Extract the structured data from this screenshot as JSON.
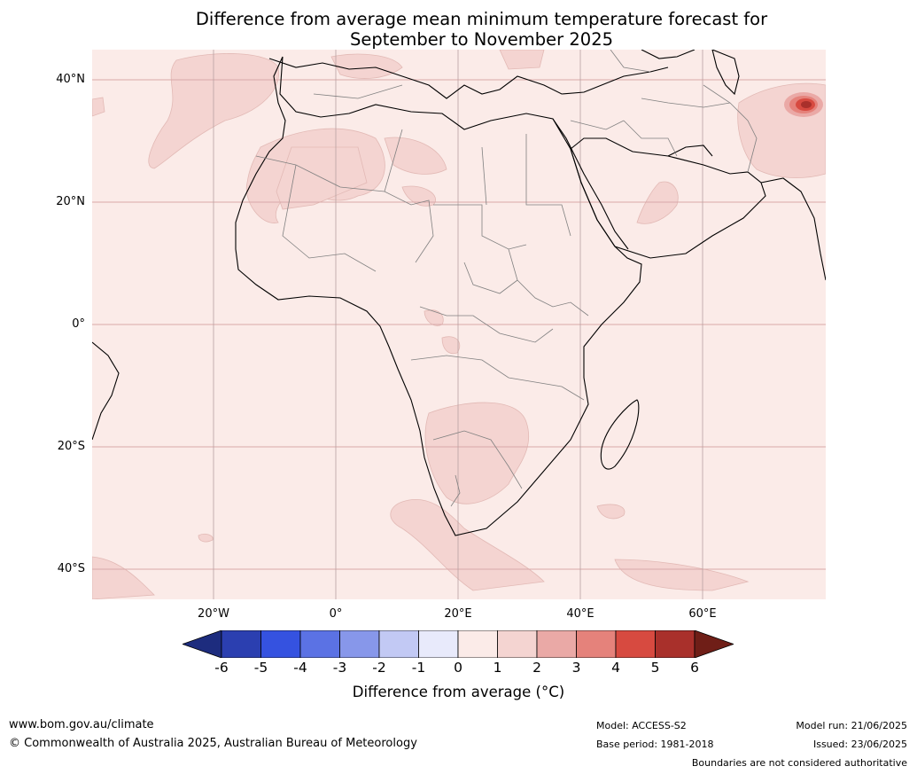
{
  "title": {
    "line1": "Difference from average mean minimum temperature forecast for",
    "line2": "September to November 2025"
  },
  "map": {
    "lat_labels": [
      "40°N",
      "20°N",
      "0°",
      "20°S",
      "40°S"
    ],
    "lon_labels": [
      "20°W",
      "0°",
      "20°E",
      "40°E",
      "60°E"
    ],
    "colors": {
      "ocean": "#fbebe8",
      "land": "#fbebe8",
      "anom_1_2": "#f4d4d1",
      "anom_2_3": "#eaa9a6",
      "anom_5_6": "#a9302b",
      "grid": "#d9a9a9",
      "coast": "#000000",
      "border": "#808080"
    }
  },
  "colorbar": {
    "ticks": [
      "-6",
      "-5",
      "-4",
      "-3",
      "-2",
      "-1",
      "0",
      "1",
      "2",
      "3",
      "4",
      "5",
      "6"
    ],
    "colors": [
      "#1d2c7e",
      "#2b3fb0",
      "#3552e0",
      "#5b72e4",
      "#8797ea",
      "#c2c9f4",
      "#e8eafb",
      "#fbebe8",
      "#f4d4d1",
      "#eaa9a6",
      "#e5827b",
      "#d74a40",
      "#a9302b",
      "#6f1e17"
    ],
    "label": "Difference from average (°C)"
  },
  "footer": {
    "website": "www.bom.gov.au/climate",
    "copyright": "© Commonwealth of Australia 2025, Australian Bureau of Meteorology",
    "model": "Model: ACCESS-S2",
    "base_period": "Base period: 1981-2018",
    "model_run": "Model run: 21/06/2025",
    "issued": "Issued: 23/06/2025",
    "disclaimer": "Boundaries are not considered authoritative"
  }
}
